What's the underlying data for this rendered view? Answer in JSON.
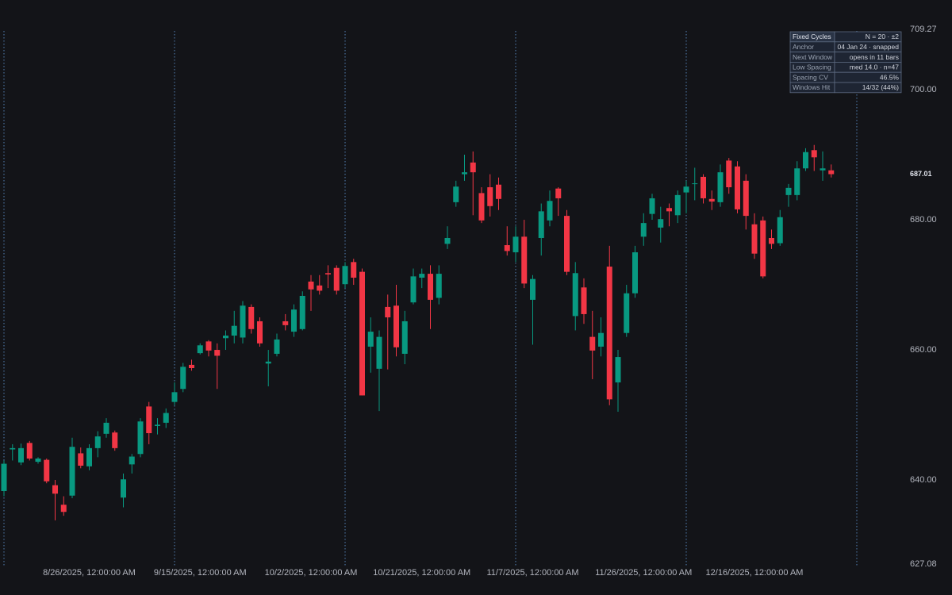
{
  "chart_data": {
    "type": "candlestick",
    "categories": [
      null,
      null,
      null,
      null,
      null,
      null,
      null,
      null,
      null,
      null,
      "8/26/2025, 12:00:00 AM",
      null,
      null,
      null,
      null,
      null,
      null,
      null,
      null,
      null,
      null,
      null,
      null,
      "9/15/2025, 12:00:00 AM",
      null,
      null,
      null,
      null,
      null,
      null,
      null,
      null,
      null,
      null,
      null,
      null,
      "10/2/2025, 12:00:00 AM",
      null,
      null,
      null,
      null,
      null,
      null,
      null,
      null,
      null,
      null,
      null,
      null,
      "10/21/2025, 12:00:00 AM",
      null,
      null,
      null,
      null,
      null,
      null,
      null,
      null,
      null,
      null,
      null,
      null,
      "11/7/2025, 12:00:00 AM",
      null,
      null,
      null,
      null,
      null,
      null,
      null,
      null,
      null,
      null,
      null,
      null,
      "11/26/2025, 12:00:00 AM",
      null,
      null,
      null,
      null,
      null,
      null,
      null,
      null,
      null,
      null,
      null,
      null,
      "12/16/2025, 12:00:00 AM",
      null,
      null,
      null,
      null,
      null,
      null,
      null,
      null,
      null
    ],
    "open": [
      638.3,
      644.7,
      642.7,
      645.7,
      642.8,
      643.1,
      639.2,
      636.2,
      637.6,
      644.1,
      642.1,
      644.9,
      647.1,
      647.3,
      637.3,
      642.4,
      644.0,
      651.3,
      648.3,
      648.8,
      652.0,
      654.0,
      657.7,
      659.5,
      661.3,
      660.0,
      661.8,
      662.2,
      661.9,
      666.6,
      664.4,
      657.9,
      659.4,
      664.4,
      662.8,
      663.2,
      670.5,
      669.9,
      671.8,
      672.6,
      670.1,
      673.5,
      672.0,
      660.5,
      657.1,
      666.6,
      666.8,
      659.4,
      667.3,
      671.1,
      671.7,
      668.0,
      676.3,
      682.7,
      687.0,
      688.8,
      684.1,
      685.0,
      685.4,
      676.1,
      675.0,
      677.4,
      667.7,
      677.2,
      679.9,
      684.8,
      680.6,
      665.2,
      669.6,
      662.0,
      660.5,
      672.8,
      655.0,
      662.6,
      668.7,
      677.4,
      680.9,
      678.8,
      681.8,
      680.7,
      684.2,
      685.5,
      686.6,
      683.2,
      682.7,
      689.1,
      688.2,
      686.0,
      679.3,
      679.9,
      677.2,
      676.4,
      683.8,
      683.8,
      687.9,
      690.7,
      687.6,
      687.6
    ],
    "high": [
      643.0,
      645.5,
      645.6,
      646.0,
      643.5,
      643.3,
      640.0,
      637.5,
      646.5,
      645.0,
      645.5,
      647.5,
      649.5,
      647.6,
      641.0,
      644.0,
      649.5,
      652.0,
      649.5,
      651.0,
      655.0,
      658.0,
      658.5,
      661.0,
      661.5,
      661.0,
      663.0,
      666.0,
      667.5,
      667.0,
      665.0,
      660.0,
      662.5,
      665.5,
      667.0,
      669.0,
      671.5,
      671.5,
      673.0,
      673.0,
      673.5,
      674.0,
      672.5,
      665.0,
      663.0,
      668.5,
      670.0,
      666.0,
      672.5,
      672.5,
      673.0,
      673.0,
      679.0,
      686.0,
      690.0,
      690.5,
      685.0,
      687.0,
      686.5,
      679.0,
      679.0,
      680.0,
      671.5,
      682.5,
      684.5,
      685.0,
      681.5,
      673.5,
      671.0,
      666.0,
      665.0,
      676.0,
      660.0,
      670.0,
      676.0,
      681.0,
      684.0,
      682.0,
      682.5,
      684.5,
      686.0,
      688.0,
      687.0,
      684.5,
      688.5,
      689.5,
      689.0,
      687.0,
      681.0,
      680.5,
      678.5,
      681.5,
      685.5,
      689.0,
      691.0,
      691.5,
      690.5,
      688.5
    ],
    "low": [
      637.5,
      643.0,
      642.3,
      643.0,
      642.5,
      639.5,
      633.8,
      634.5,
      637.2,
      641.8,
      641.5,
      643.5,
      646.5,
      644.5,
      635.8,
      641.0,
      643.5,
      645.5,
      647.0,
      648.0,
      651.5,
      653.5,
      656.8,
      659.3,
      659.0,
      654.0,
      660.0,
      661.0,
      661.0,
      662.5,
      660.5,
      654.4,
      659.0,
      663.0,
      662.0,
      663.0,
      666.0,
      668.5,
      669.5,
      668.5,
      669.5,
      670.0,
      653.0,
      656.5,
      650.6,
      657.0,
      659.0,
      657.8,
      667.0,
      669.5,
      663.2,
      667.0,
      675.5,
      682.0,
      686.0,
      680.7,
      679.5,
      680.5,
      681.5,
      674.5,
      673.5,
      669.5,
      660.8,
      674.5,
      679.0,
      680.6,
      671.5,
      663.0,
      664.0,
      655.5,
      659.0,
      651.5,
      650.5,
      662.0,
      668.0,
      676.0,
      680.0,
      676.5,
      679.0,
      679.5,
      681.0,
      683.0,
      682.5,
      681.5,
      682.0,
      684.0,
      681.0,
      678.5,
      674.0,
      671.0,
      675.5,
      676.0,
      682.0,
      683.0,
      687.5,
      687.5,
      686.0,
      686.5
    ],
    "close": [
      642.5,
      644.9,
      644.9,
      643.3,
      643.3,
      639.8,
      637.9,
      635.1,
      645.1,
      642.2,
      644.9,
      646.7,
      648.8,
      644.9,
      640.1,
      643.6,
      649.0,
      647.2,
      648.5,
      650.3,
      653.5,
      657.4,
      657.2,
      660.7,
      659.9,
      659.1,
      662.2,
      663.7,
      666.8,
      663.2,
      661.0,
      658.2,
      661.6,
      663.8,
      666.2,
      668.3,
      669.3,
      669.1,
      671.6,
      669.1,
      672.9,
      671.1,
      653.0,
      662.8,
      662.0,
      665.0,
      660.4,
      664.4,
      671.3,
      671.7,
      667.7,
      671.7,
      677.2,
      685.1,
      687.3,
      687.3,
      679.9,
      682.1,
      683.2,
      675.2,
      677.4,
      670.2,
      670.9,
      681.3,
      682.9,
      683.3,
      672.0,
      671.8,
      665.5,
      659.9,
      662.6,
      652.4,
      658.9,
      668.7,
      675.0,
      679.5,
      683.3,
      680.1,
      681.3,
      683.8,
      685.1,
      685.6,
      683.3,
      682.8,
      687.3,
      685.0,
      681.6,
      680.6,
      674.8,
      671.3,
      676.3,
      680.4,
      684.9,
      687.9,
      690.4,
      689.6,
      687.9,
      687.01
    ],
    "up_color": "#089981",
    "down_color": "#f23645",
    "ylim": [
      627.08,
      709.27
    ],
    "yticks": [
      627.08,
      {
        "value": 640,
        "label": "640.00"
      },
      {
        "value": 660,
        "label": "660.00"
      },
      {
        "value": 680,
        "label": "680.00"
      },
      {
        "value": 700,
        "label": "700.00"
      },
      709.27
    ],
    "last_price": {
      "value": 687.01,
      "label": "687.01"
    },
    "cycle_index": [
      0,
      20,
      40,
      60,
      80,
      100
    ],
    "cycle_color": "#5b8bc4",
    "info_table": {
      "rows": [
        [
          "Fixed Cycles",
          "N = 20 · ±2"
        ],
        [
          "Anchor",
          "04 Jan 24 · snapped"
        ],
        [
          "Next Window",
          "opens in 11 bars"
        ],
        [
          "Low Spacing",
          "med 14.0 · n=47"
        ],
        [
          "Spacing CV",
          "46.5%"
        ],
        [
          "Windows Hit",
          "14/32 (44%)"
        ]
      ]
    }
  }
}
